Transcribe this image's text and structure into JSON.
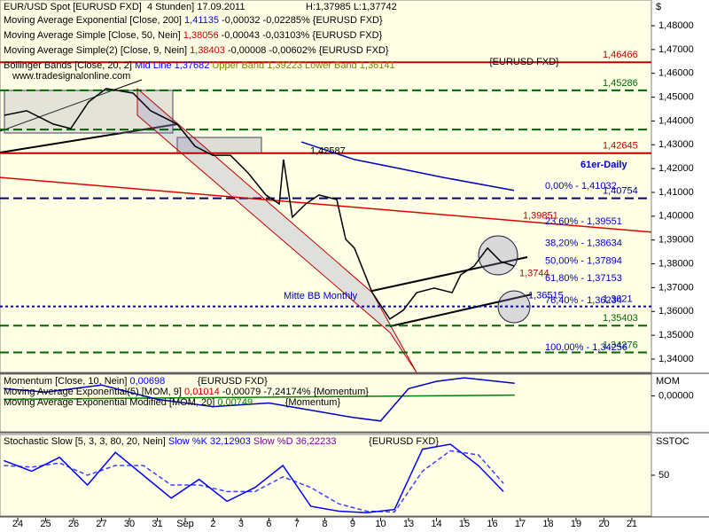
{
  "chart_data": [
    {
      "type": "line",
      "title": "EUR/USD Spot [EURUSD FXD]  4 Stunden] 17.09.2011",
      "subtitle": "H:1,37985 L:1,37742",
      "y_label": "$",
      "legend": [
        [
          {
            "text": "Moving Average Exponential [Close, 200] ",
            "color": "#000000"
          },
          {
            "text": "1,41135",
            "color": "#0000ff"
          },
          {
            "text": " -0,00032 -0,02285% {EURUSD FXD}",
            "color": "#000000"
          }
        ],
        [
          {
            "text": "Moving Average Simple [Close, 50, Nein] ",
            "color": "#000000"
          },
          {
            "text": "1,38056",
            "color": "#d00000"
          },
          {
            "text": " -0,00043 -0,03103% {EURUSD FXD}",
            "color": "#000000"
          }
        ],
        [
          {
            "text": "Moving Average Simple(2) [Close, 9, Nein] ",
            "color": "#000000"
          },
          {
            "text": "1,38403",
            "color": "#d00000"
          },
          {
            "text": " -0,00008 -0,00602% {EURUSD FXD}",
            "color": "#000000"
          }
        ],
        [
          {
            "text": "Bollinger Bands [Close, 20, 2] ",
            "color": "#000000"
          },
          {
            "text": "Mid Line 1,37682",
            "color": "#0000ff"
          },
          {
            "text": " Upper Band 1,39223",
            "color": "#808000"
          },
          {
            "text": " Lower Band 1,36141",
            "color": "#808000"
          }
        ]
      ],
      "legend_tag": "{EURUSD FXD}",
      "xlim": [
        -0.635,
        22.7
      ],
      "ylim": [
        1.3344,
        1.4908
      ],
      "yticks": [
        {
          "value": 1.48,
          "label": "1,48000"
        },
        {
          "value": 1.47,
          "label": "1,47000"
        },
        {
          "value": 1.46,
          "label": "1,46000"
        },
        {
          "value": 1.45,
          "label": "1,45000"
        },
        {
          "value": 1.44,
          "label": "1,44000"
        },
        {
          "value": 1.43,
          "label": "1,43000"
        },
        {
          "value": 1.42,
          "label": "1,42000"
        },
        {
          "value": 1.41,
          "label": "1,41000"
        },
        {
          "value": 1.4,
          "label": "1,40000"
        },
        {
          "value": 1.39,
          "label": "1,39000"
        },
        {
          "value": 1.38,
          "label": "1,38000"
        },
        {
          "value": 1.37,
          "label": "1,37000"
        },
        {
          "value": 1.36,
          "label": "1,36000"
        },
        {
          "value": 1.35,
          "label": "1,35000"
        },
        {
          "value": 1.34,
          "label": "1,34000"
        }
      ],
      "color": "#000000",
      "x": [
        -0.48,
        0.32,
        1.27,
        1.9,
        2.54,
        3.17,
        4.13,
        4.76,
        5.71,
        6.35,
        6.98,
        7.62,
        8.25,
        8.89,
        9.37,
        9.52,
        9.84,
        10.32,
        10.79,
        11.43,
        11.75,
        12.06,
        12.7,
        13.33,
        13.81,
        14.29,
        14.92,
        15.56,
        15.87,
        16.35,
        16.83,
        17.3,
        17.78
      ],
      "values": [
        1.4424,
        1.4443,
        1.4387,
        1.4368,
        1.448,
        1.4536,
        1.4517,
        1.4443,
        1.4387,
        1.4294,
        1.4256,
        1.4256,
        1.4182,
        1.4089,
        1.4052,
        1.4238,
        1.3996,
        1.4052,
        1.4089,
        1.407,
        1.3903,
        1.3866,
        1.3679,
        1.3568,
        1.3605,
        1.3679,
        1.3698,
        1.3679,
        1.3754,
        1.3791,
        1.3866,
        1.381,
        1.3791
      ],
      "overlays": [
        {
          "color": "#0000c0",
          "x": [
            10.16,
            12.06,
            13.65,
            15.24,
            17.78
          ],
          "values": [
            1.4312,
            1.4238,
            1.4201,
            1.4163,
            1.4108
          ]
        },
        {
          "color": "#e00000",
          "x": [
            -0.635,
            22.7
          ],
          "values": [
            1.4163,
            1.3933
          ]
        }
      ],
      "levels": [
        {
          "value": 1.46466,
          "label": "1,46466",
          "color": "#c00000",
          "dash": "solid"
        },
        {
          "value": 1.45286,
          "label": "1,45286",
          "color": "#006400",
          "dash": "dash"
        },
        {
          "value": 1.4364,
          "color": "#006400",
          "dash": "dash"
        },
        {
          "value": 1.42645,
          "label": "1,42645",
          "color": "#c00000",
          "dash": "solid"
        },
        {
          "value": 1.40754,
          "label": "1,40754",
          "color": "#000080",
          "dash": "dash"
        },
        {
          "value": 1.3621,
          "label": "1,3621",
          "color": "#0000c0",
          "dash": "dot"
        },
        {
          "value": 1.35403,
          "label": "1,35403",
          "color": "#006400",
          "dash": "dash"
        },
        {
          "value": 1.34276,
          "label": "1,34276",
          "color": "#006400",
          "dash": "dash"
        }
      ],
      "fib_labels": [
        {
          "value": 1.41032,
          "label": "0,00% - 1,41032"
        },
        {
          "value": 1.39551,
          "label": "23,60% - 1,39551"
        },
        {
          "value": 1.38634,
          "label": "38,20% - 1,38634"
        },
        {
          "value": 1.37894,
          "label": "50,00% - 1,37894"
        },
        {
          "value": 1.37153,
          "label": "61,80% - 1,37153"
        },
        {
          "value": 1.36234,
          "label": "76,40% - 1,36234"
        },
        {
          "value": 1.34256,
          "label": "100,00% - 1,34256"
        }
      ],
      "annotations": [
        {
          "value": 1.42587,
          "label": "1,42587",
          "color": "#000000"
        },
        {
          "value": 1.39851,
          "label": "1,39851",
          "color": "#c00000"
        },
        {
          "value": 1.3744,
          "label": "1,3744",
          "color": "#c00000"
        },
        {
          "value": 1.36515,
          "label": "1,36515",
          "color": "#0000c0"
        }
      ],
      "notes": [
        "61er-Daily",
        "Mitte BB Monthly",
        "www.tradesignalonline.com"
      ]
    },
    {
      "type": "line",
      "y_label": "MOM",
      "legend": [
        [
          {
            "text": "Momentum [Close, 10, Nein] ",
            "color": "#000000"
          },
          {
            "text": "0,00698",
            "color": "#0000ff"
          },
          {
            "text": "            {EURUSD FXD}",
            "color": "#000000"
          }
        ],
        [
          {
            "text": "Moving Average Exponential(5) [MOM, 9] ",
            "color": "#000000"
          },
          {
            "text": "0,01014",
            "color": "#d00000"
          },
          {
            "text": " -0,00079 -7,24174% {Momentum}",
            "color": "#000000"
          }
        ],
        [
          {
            "text": "Moving Average Exponential Modified [MOM, 20] ",
            "color": "#000000"
          },
          {
            "text": "0,00749",
            "color": "#008000"
          },
          {
            "text": "            {Momentum}",
            "color": "#000000"
          }
        ]
      ],
      "xlim": [
        -0.635,
        22.7
      ],
      "ylim": [
        -0.02,
        0.012
      ],
      "yticks": [
        {
          "value": 0,
          "label": "0,00000"
        }
      ],
      "color": "#0000c0",
      "x": [
        -0.5,
        1,
        3,
        5,
        7,
        9,
        10.5,
        12,
        13,
        14,
        15,
        16,
        17.8
      ],
      "values": [
        0.004,
        0.002,
        0.006,
        -0.002,
        -0.006,
        -0.004,
        -0.008,
        -0.012,
        -0.014,
        0.004,
        0.008,
        0.01,
        0.007
      ],
      "overlays": [
        {
          "color": "#008000",
          "x": [
            -0.5,
            17.8
          ],
          "values": [
            -0.002,
            0.0004
          ]
        }
      ]
    },
    {
      "type": "line",
      "y_label": "SSTOC",
      "legend": [
        [
          {
            "text": "Stochastic Slow [5, 3, 3, 80, 20, Nein] ",
            "color": "#000000"
          },
          {
            "text": "Slow %K 32,12903",
            "color": "#0000ff"
          },
          {
            "text": " Slow %D 36,22233",
            "color": "#8000a0"
          },
          {
            "text": "            {EURUSD FXD}",
            "color": "#000000"
          }
        ]
      ],
      "xlim": [
        -0.635,
        22.7
      ],
      "ylim": [
        0,
        100
      ],
      "yticks": [
        50
      ],
      "color": "#0000ff",
      "x": [
        -0.5,
        0.5,
        1.5,
        2.5,
        3.5,
        4.5,
        5.5,
        6.5,
        7.5,
        8.5,
        9.5,
        10.5,
        11.5,
        12.5,
        13.5,
        14.5,
        15.5,
        16.5,
        17.4
      ],
      "values": [
        68,
        55,
        72,
        38,
        78,
        50,
        22,
        45,
        18,
        35,
        62,
        12,
        6,
        4,
        8,
        82,
        88,
        62,
        30
      ],
      "overlays": [
        {
          "color": "#4040ff",
          "dashed": true,
          "x": [
            -0.5,
            0.5,
            1.5,
            2.5,
            3.5,
            4.5,
            5.5,
            6.5,
            7.5,
            8.5,
            9.5,
            10.5,
            11.5,
            12.5,
            13.5,
            14.5,
            15.5,
            16.5,
            17.4
          ],
          "values": [
            62,
            60,
            65,
            50,
            62,
            62,
            38,
            38,
            30,
            30,
            48,
            35,
            15,
            6,
            5,
            55,
            80,
            75,
            40
          ]
        }
      ],
      "xticks": [
        {
          "value": 0,
          "label": "24"
        },
        {
          "value": 1,
          "label": "25"
        },
        {
          "value": 2,
          "label": "26"
        },
        {
          "value": 3,
          "label": "27"
        },
        {
          "value": 4,
          "label": "30"
        },
        {
          "value": 5,
          "label": "31"
        },
        {
          "value": 6,
          "label": "Sep"
        },
        {
          "value": 7,
          "label": "2"
        },
        {
          "value": 8,
          "label": "3"
        },
        {
          "value": 9,
          "label": "6"
        },
        {
          "value": 10,
          "label": "7"
        },
        {
          "value": 11,
          "label": "8"
        },
        {
          "value": 12,
          "label": "9"
        },
        {
          "value": 13,
          "label": "10"
        },
        {
          "value": 14,
          "label": "13"
        },
        {
          "value": 15,
          "label": "14"
        },
        {
          "value": 16,
          "label": "15"
        },
        {
          "value": 17,
          "label": "16"
        },
        {
          "value": 18,
          "label": "17"
        },
        {
          "value": 19,
          "label": "18"
        },
        {
          "value": 20,
          "label": "19"
        },
        {
          "value": 21,
          "label": "20"
        },
        {
          "value": 22,
          "label": "21"
        }
      ]
    }
  ]
}
